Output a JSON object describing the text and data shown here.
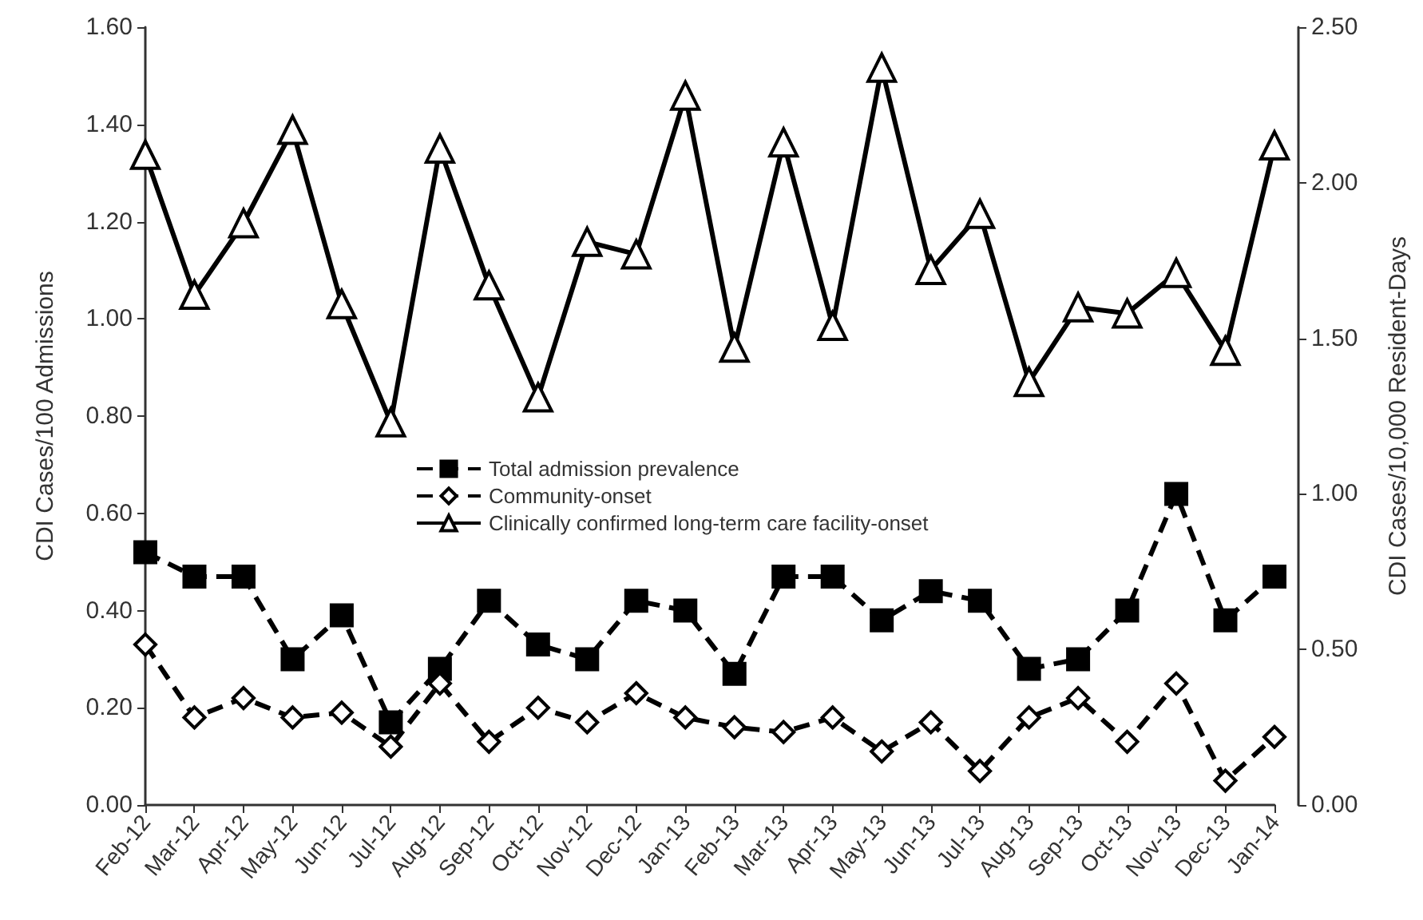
{
  "chart_data": {
    "type": "line",
    "ylabel": "CDI Cases/100 Admissions",
    "y2label": "CDI Cases/10,000 Resident-Days",
    "categories": [
      "Feb-12",
      "Mar-12",
      "Apr-12",
      "May-12",
      "Jun-12",
      "Jul-12",
      "Aug-12",
      "Sep-12",
      "Oct-12",
      "Nov-12",
      "Dec-12",
      "Jan-13",
      "Feb-13",
      "Mar-13",
      "Apr-13",
      "May-13",
      "Jun-13",
      "Jul-13",
      "Aug-13",
      "Sep-13",
      "Oct-13",
      "Nov-13",
      "Dec-13",
      "Jan-14"
    ],
    "series": [
      {
        "name": "Total admission prevalence",
        "color": "#000000",
        "marker": "square",
        "line_style": "dashed",
        "values": [
          0.52,
          0.47,
          0.47,
          0.3,
          0.39,
          0.17,
          0.28,
          0.42,
          0.33,
          0.3,
          0.42,
          0.4,
          0.27,
          0.47,
          0.47,
          0.38,
          0.44,
          0.42,
          0.28,
          0.3,
          0.4,
          0.64,
          0.38,
          0.47
        ]
      },
      {
        "name": "Community-onset",
        "color": "#000000",
        "marker": "diamond",
        "line_style": "dashed",
        "values": [
          0.33,
          0.18,
          0.22,
          0.18,
          0.19,
          0.12,
          0.25,
          0.13,
          0.2,
          0.17,
          0.23,
          0.18,
          0.16,
          0.15,
          0.18,
          0.11,
          0.17,
          0.07,
          0.18,
          0.22,
          0.13,
          0.25,
          0.05,
          0.14
        ]
      },
      {
        "name": "Clinically confirmed long-term care facility-onset",
        "color": "#000000",
        "marker": "triangle",
        "line_style": "solid",
        "axis": "y2",
        "values": [
          2.09,
          1.64,
          1.87,
          2.17,
          1.61,
          1.23,
          2.11,
          1.67,
          1.31,
          1.81,
          1.77,
          2.28,
          1.47,
          2.13,
          1.54,
          2.37,
          1.72,
          1.9,
          1.36,
          1.6,
          1.58,
          1.71,
          1.46,
          2.12
        ]
      }
    ],
    "ylim": [
      0,
      1.6
    ],
    "yticks": [
      {
        "value": 0,
        "label": "0.00"
      },
      {
        "value": 0.2,
        "label": "0.20"
      },
      {
        "value": 0.4,
        "label": "0.40"
      },
      {
        "value": 0.6,
        "label": "0.60"
      },
      {
        "value": 0.8,
        "label": "0.80"
      },
      {
        "value": 1,
        "label": "1.00"
      },
      {
        "value": 1.2,
        "label": "1.20"
      },
      {
        "value": 1.4,
        "label": "1.40"
      },
      {
        "value": 1.6,
        "label": "1.60"
      }
    ],
    "y2lim": [
      0,
      2.5
    ],
    "y2ticks": [
      {
        "value": 0,
        "label": "0.00"
      },
      {
        "value": 0.5,
        "label": "0.50"
      },
      {
        "value": 1,
        "label": "1.00"
      },
      {
        "value": 1.5,
        "label": "1.50"
      },
      {
        "value": 2,
        "label": "2.00"
      },
      {
        "value": 2.5,
        "label": "2.50"
      }
    ],
    "grid": false,
    "legend": "center"
  }
}
